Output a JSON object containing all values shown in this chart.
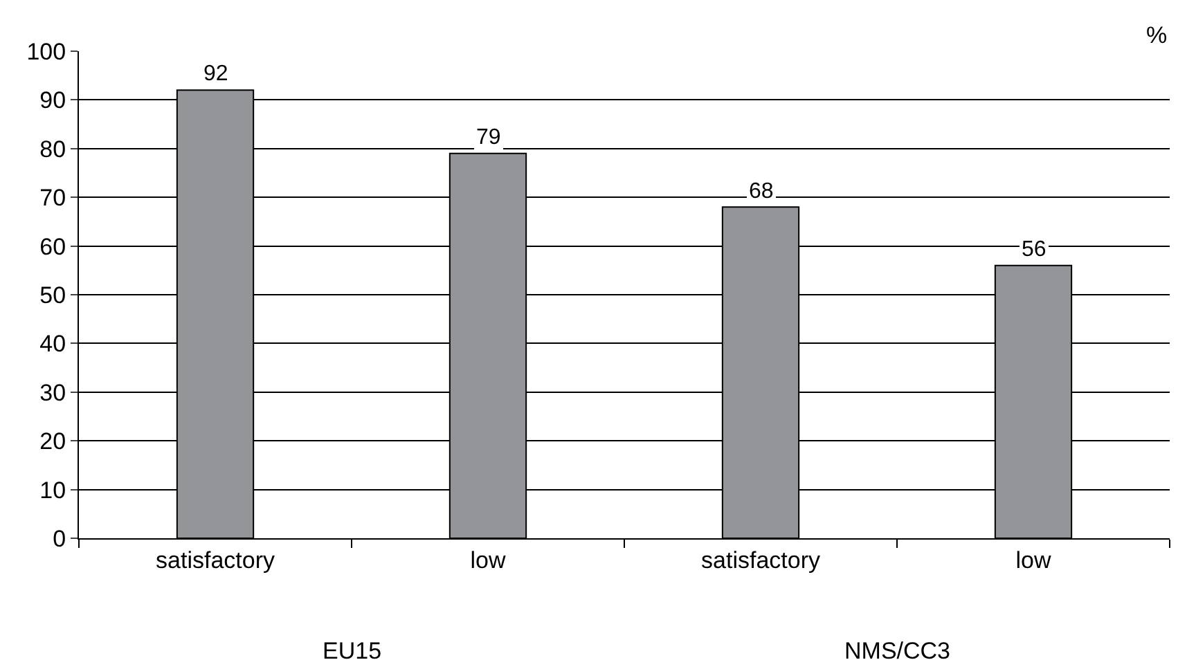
{
  "chart_data": {
    "type": "bar",
    "ylabel": "%",
    "categories": [
      "satisfactory",
      "low",
      "satisfactory",
      "low"
    ],
    "values": [
      92,
      79,
      68,
      56
    ],
    "color": "#939598",
    "ylim": [
      0,
      100
    ],
    "yticks": [
      0,
      10,
      20,
      30,
      40,
      50,
      60,
      70,
      80,
      90,
      100
    ],
    "grid": "y",
    "data_labels": true,
    "legend": false,
    "annotations": [
      "EU15",
      "NMS/CC3"
    ]
  }
}
